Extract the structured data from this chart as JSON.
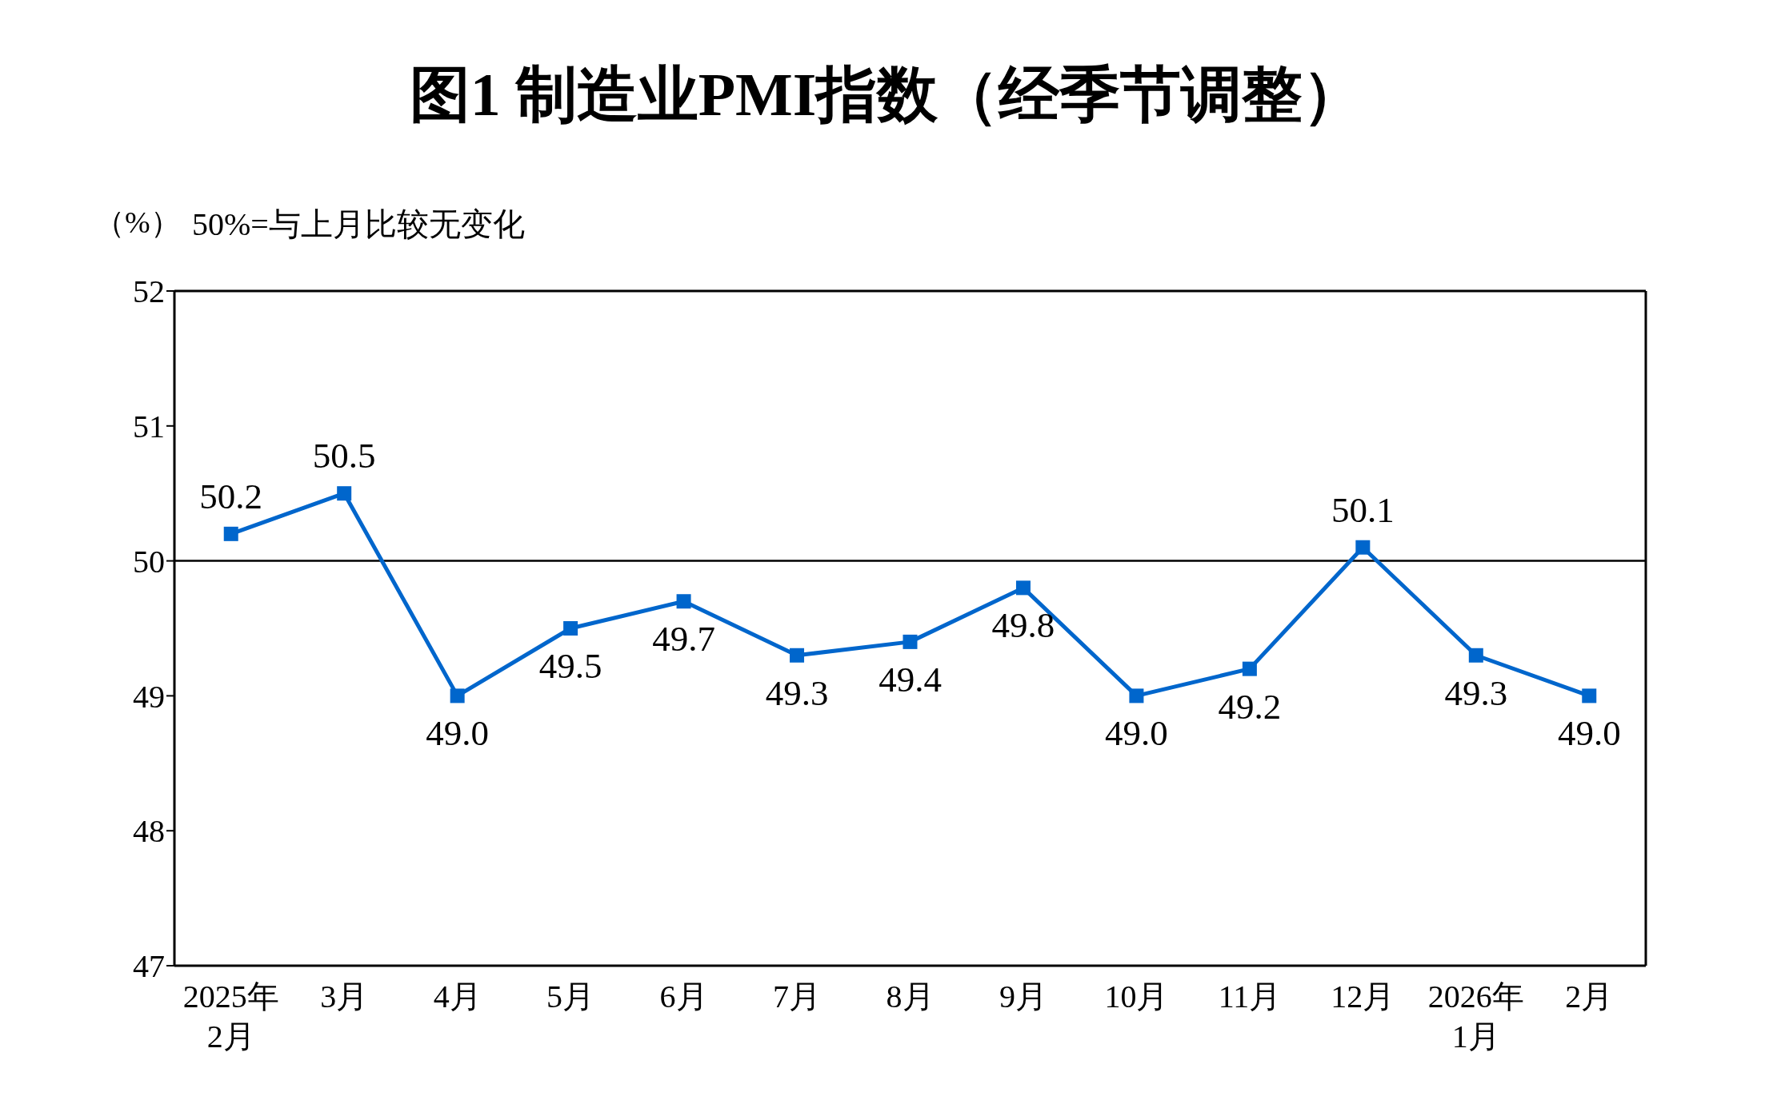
{
  "chart_data": {
    "type": "line",
    "title": "图1  制造业PMI指数（经季节调整）",
    "ylabel": "（%）",
    "annotations": [
      "50%=与上月比较无变化"
    ],
    "categories": [
      "2025年\n2月",
      "3月",
      "4月",
      "5月",
      "6月",
      "7月",
      "8月",
      "9月",
      "10月",
      "11月",
      "12月",
      "2026年\n1月",
      "2月"
    ],
    "series": [
      {
        "color": "#0066cc",
        "values": [
          50.2,
          50.5,
          49.0,
          49.5,
          49.7,
          49.3,
          49.4,
          49.8,
          49.0,
          49.2,
          50.1,
          49.3,
          49.0
        ],
        "value_labels": [
          "50.2",
          "50.5",
          "49.0",
          "49.5",
          "49.7",
          "49.3",
          "49.4",
          "49.8",
          "49.0",
          "49.2",
          "50.1",
          "49.3",
          "49.0"
        ]
      }
    ],
    "ylim": [
      47,
      52
    ],
    "yticks": [
      47,
      48,
      49,
      50,
      51,
      52
    ],
    "ref_lines": [
      {
        "axis": "y",
        "value": 50,
        "color": "#000000"
      }
    ],
    "marker": "square",
    "line_style": "solid",
    "grid": false,
    "legend": false
  }
}
